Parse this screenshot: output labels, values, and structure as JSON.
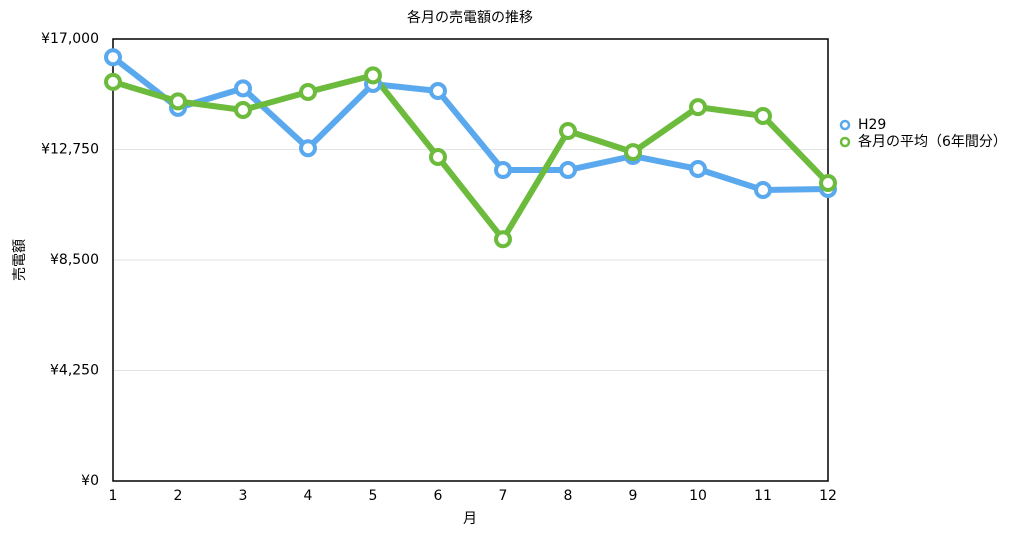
{
  "chart_data": {
    "type": "line",
    "title": "各月の売電額の推移",
    "x_label": "月",
    "y_label": "売電額",
    "categories": [
      "1",
      "2",
      "3",
      "4",
      "5",
      "6",
      "7",
      "8",
      "9",
      "10",
      "11",
      "12"
    ],
    "series": [
      {
        "name": "H29",
        "color": "#5aa9ee",
        "values": [
          16300,
          14350,
          15100,
          12800,
          15270,
          15000,
          11960,
          11960,
          12500,
          12000,
          11190,
          11230
        ]
      },
      {
        "name": "各月の平均（6年間分）",
        "color": "#6cbb3c",
        "values": [
          15350,
          14600,
          14270,
          14960,
          15600,
          12460,
          9300,
          13460,
          12650,
          14380,
          14040,
          11460
        ]
      }
    ],
    "ylim": [
      0,
      17000
    ],
    "yticks": [
      {
        "value": 0,
        "label": "¥0"
      },
      {
        "value": 4250,
        "label": "¥4,250"
      },
      {
        "value": 8500,
        "label": "¥8,500"
      },
      {
        "value": 12750,
        "label": "¥12,750"
      },
      {
        "value": 17000,
        "label": "¥17,000"
      }
    ],
    "grid": true,
    "legend": "right"
  }
}
